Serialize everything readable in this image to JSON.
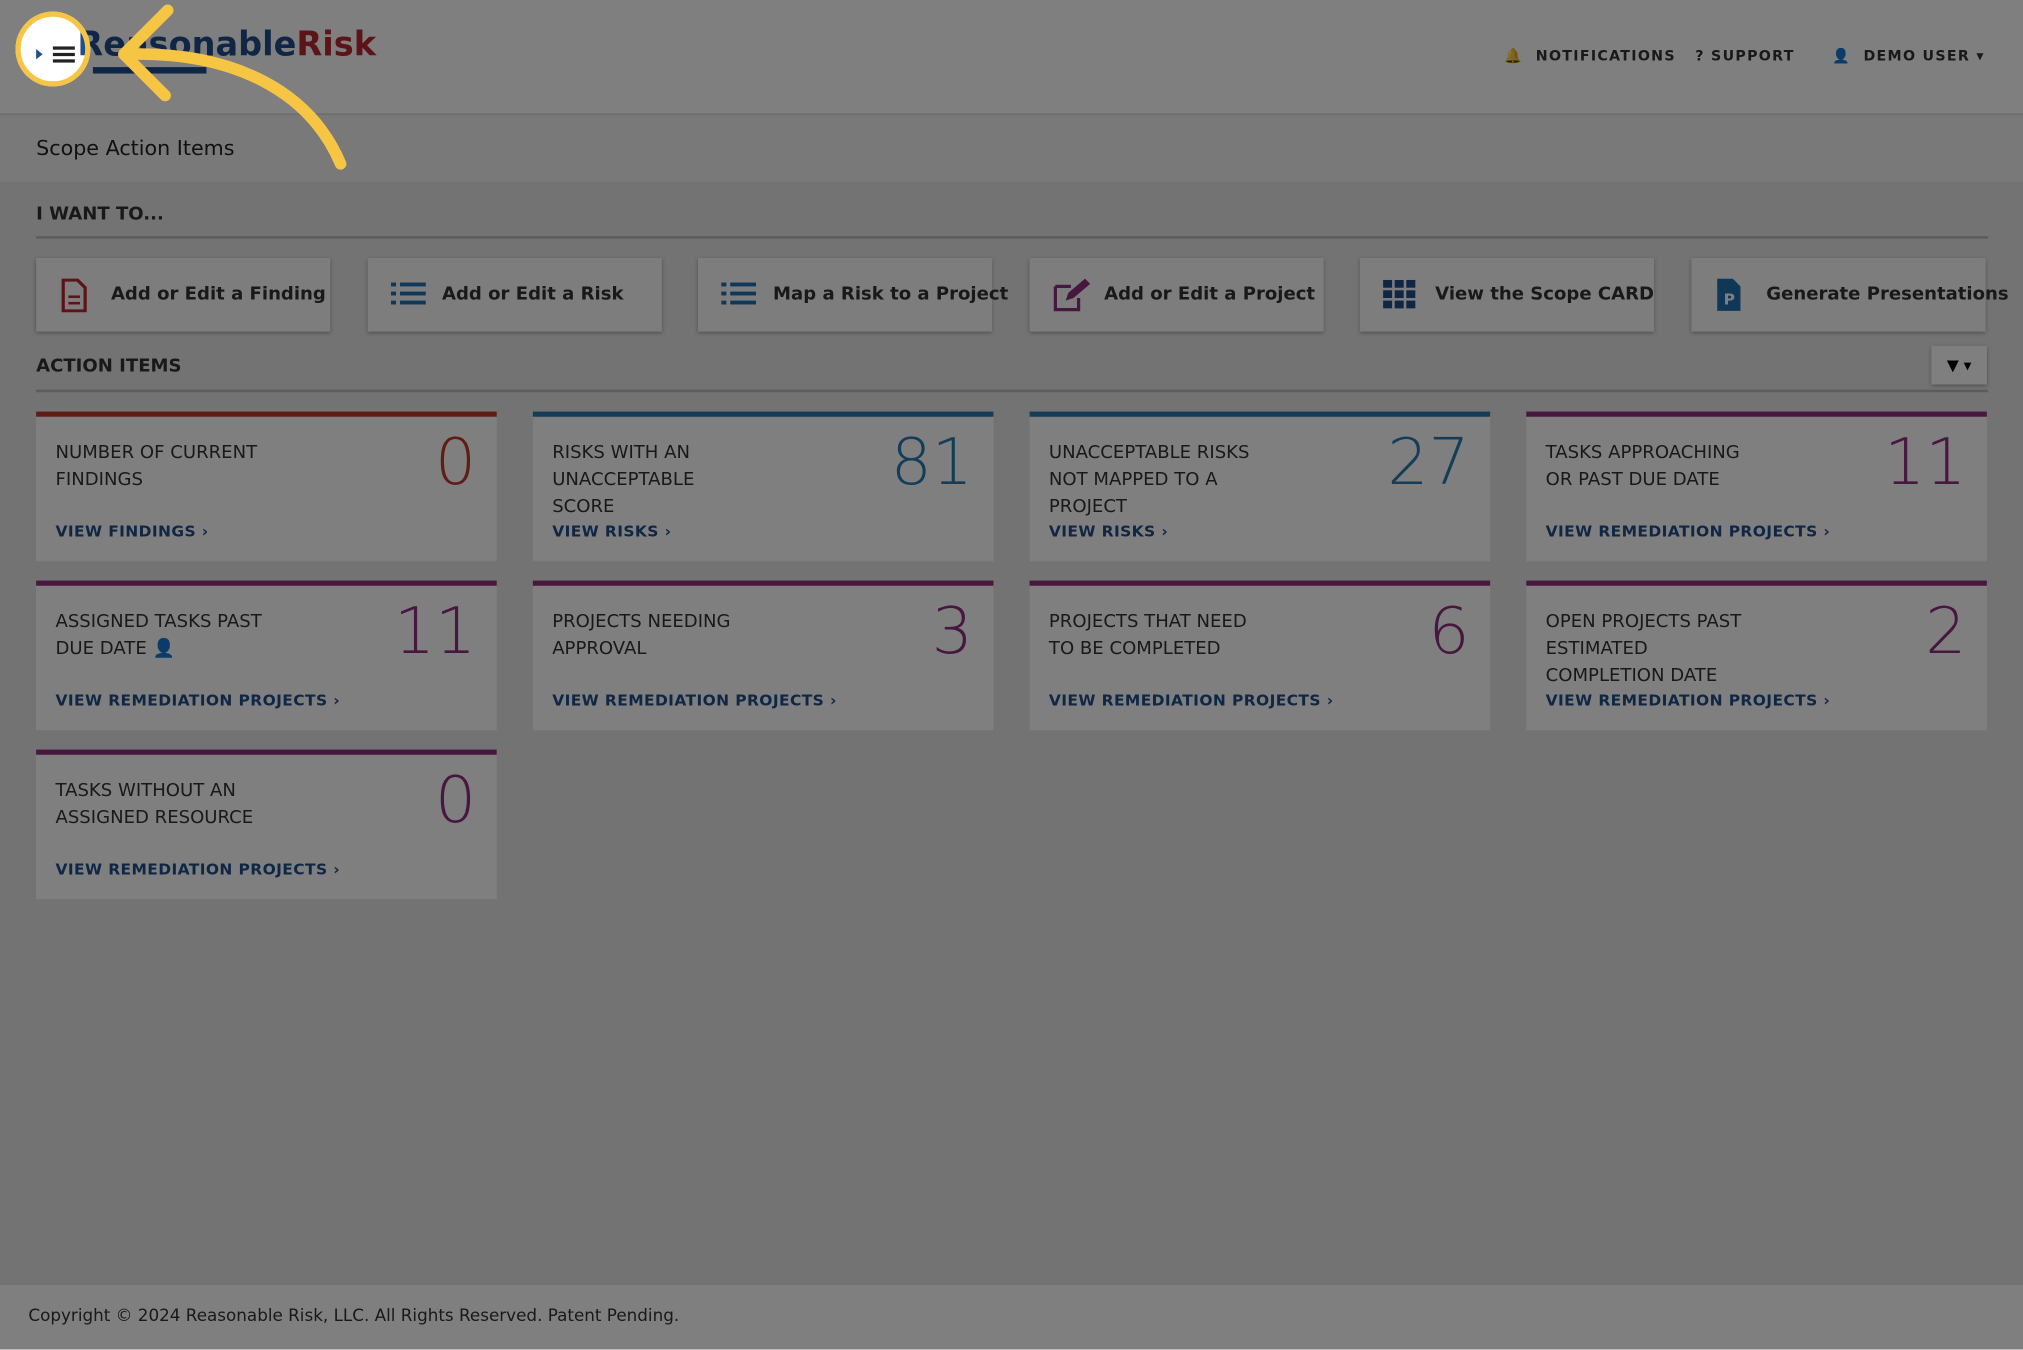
{
  "header": {
    "logo": {
      "part1": "Reasonable",
      "part2": "Risk"
    },
    "nav": [
      "NOTIFICATIONS",
      "SUPPORT",
      "DEMO USER"
    ]
  },
  "page_title": "Scope Action Items",
  "want_section": {
    "heading": "I WANT TO...",
    "actions": [
      "Add or Edit a Finding",
      "Add or Edit a Risk",
      "Map a Risk to a Project",
      "Add or Edit a Project",
      "View the Scope CARD",
      "Generate Presentations"
    ]
  },
  "action_items": {
    "heading": "ACTION ITEMS",
    "cards": [
      {
        "title": "NUMBER OF CURRENT FINDINGS",
        "value": "0",
        "link": "VIEW FINDINGS",
        "color": "#c0392b"
      },
      {
        "title": "RISKS WITH AN UNACCEPTABLE SCORE",
        "value": "81",
        "link": "VIEW RISKS",
        "color": "#2a7ab0"
      },
      {
        "title": "UNACCEPTABLE RISKS NOT MAPPED TO A PROJECT",
        "value": "27",
        "link": "VIEW RISKS",
        "color": "#2a7ab0"
      },
      {
        "title": "TASKS APPROACHING OR PAST DUE DATE",
        "value": "11",
        "link": "VIEW REMEDIATION PROJECTS",
        "color": "#8e2f80"
      },
      {
        "title": "ASSIGNED TASKS PAST DUE DATE",
        "value": "11",
        "link": "VIEW REMEDIATION PROJECTS",
        "color": "#8e2f80"
      },
      {
        "title": "PROJECTS NEEDING APPROVAL",
        "value": "3",
        "link": "VIEW REMEDIATION PROJECTS",
        "color": "#8e2f80"
      },
      {
        "title": "PROJECTS THAT NEED TO BE COMPLETED",
        "value": "6",
        "link": "VIEW REMEDIATION PROJECTS",
        "color": "#8e2f80"
      },
      {
        "title": "OPEN PROJECTS PAST ESTIMATED COMPLETION DATE",
        "value": "2",
        "link": "VIEW REMEDIATION PROJECTS",
        "color": "#8e2f80"
      },
      {
        "title": "TASKS WITHOUT AN ASSIGNED RESOURCE",
        "value": "0",
        "link": "VIEW REMEDIATION PROJECTS",
        "color": "#8e2f80"
      }
    ]
  },
  "footer": "Copyright © 2024 Reasonable Risk, LLC. All Rights Reserved. Patent Pending."
}
